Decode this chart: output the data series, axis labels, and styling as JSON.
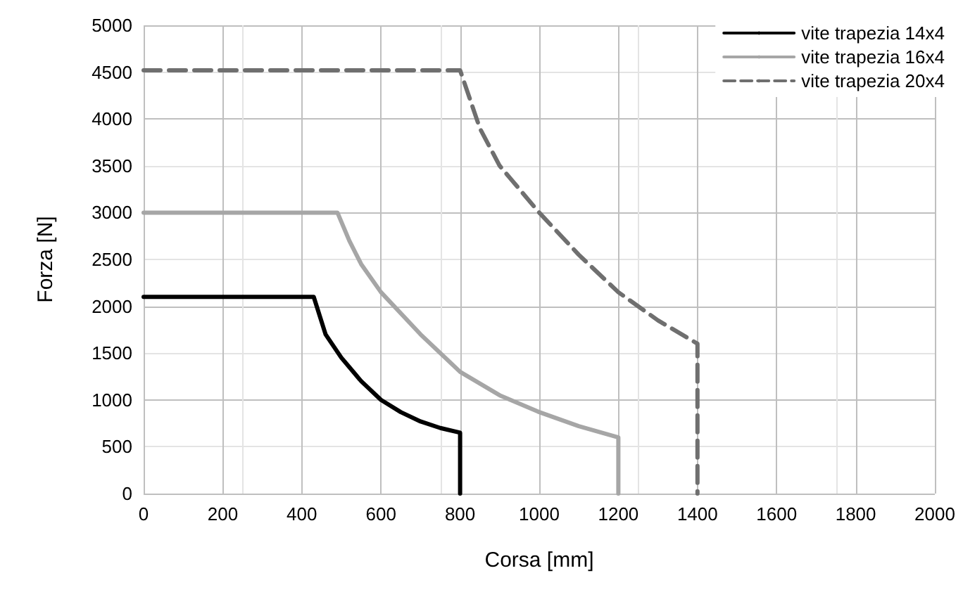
{
  "chart_data": {
    "type": "line",
    "xlabel": "Corsa [mm]",
    "ylabel": "Forza [N]",
    "xlim": [
      0,
      2000
    ],
    "xticks": [
      0,
      200,
      400,
      600,
      800,
      1000,
      1200,
      1400,
      1600,
      1800,
      2000
    ],
    "ylim": [
      0,
      5000
    ],
    "yticks": [
      0,
      500,
      1000,
      1500,
      2000,
      2500,
      3000,
      3500,
      4000,
      4500,
      5000
    ],
    "grid": true,
    "legend": "top right",
    "marker": "none",
    "series": [
      {
        "name": "vite trapezia 14x4",
        "color": "#000000",
        "line_style": "solid",
        "x": [
          0,
          430,
          460,
          500,
          550,
          600,
          650,
          700,
          750,
          800,
          800
        ],
        "values": [
          2100,
          2100,
          1700,
          1450,
          1200,
          1000,
          870,
          770,
          700,
          650,
          0
        ]
      },
      {
        "name": "vite trapezia 16x4",
        "color": "#a6a6a6",
        "line_style": "solid",
        "x": [
          0,
          490,
          520,
          550,
          600,
          700,
          800,
          900,
          1000,
          1100,
          1200,
          1200
        ],
        "values": [
          3000,
          3000,
          2700,
          2450,
          2150,
          1700,
          1300,
          1050,
          870,
          720,
          600,
          0
        ]
      },
      {
        "name": "vite trapezia 20x4",
        "color": "#6f6f6f",
        "line_style": "dashed",
        "x": [
          0,
          800,
          850,
          900,
          1000,
          1100,
          1200,
          1300,
          1400,
          1400
        ],
        "values": [
          4520,
          4520,
          3900,
          3500,
          3000,
          2550,
          2150,
          1850,
          1600,
          0
        ]
      }
    ]
  }
}
